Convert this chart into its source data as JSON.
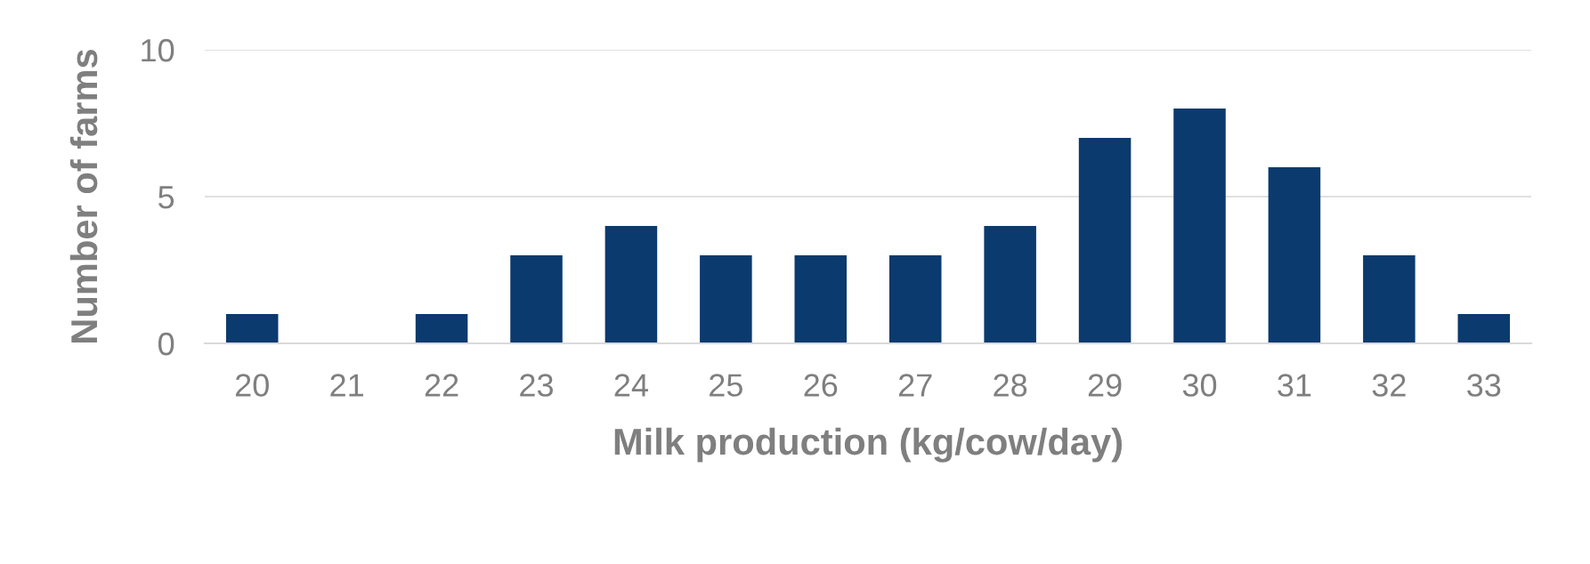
{
  "chart_data": {
    "type": "bar",
    "xlabel": "Milk production (kg/cow/day)",
    "ylabel": "Number of farms",
    "categories": [
      "20",
      "21",
      "22",
      "23",
      "24",
      "25",
      "26",
      "27",
      "28",
      "29",
      "30",
      "31",
      "32",
      "33"
    ],
    "values": [
      1,
      0,
      1,
      3,
      4,
      3,
      3,
      3,
      4,
      7,
      8,
      6,
      3,
      1
    ],
    "color": "#0b3a6e",
    "ylim": [
      0,
      10
    ],
    "yticks": [
      0,
      5,
      10
    ],
    "grid": "y",
    "legend": false
  }
}
